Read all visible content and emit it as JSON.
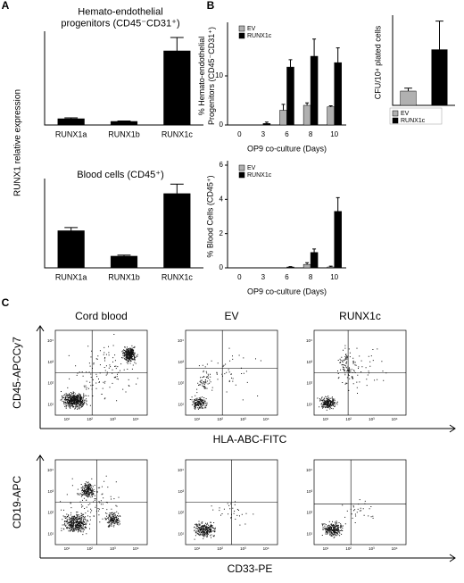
{
  "chart_data": [
    {
      "type": "bar",
      "panel": "A",
      "title": [
        "Hemato-endothelial",
        "progenitors (CD45⁻CD31⁺)"
      ],
      "y_label": "RUNX1 relative expression",
      "categories": [
        "RUNX1a",
        "RUNX1b",
        "RUNX1c"
      ],
      "values": [
        0.7,
        0.4,
        8.3
      ],
      "errors": [
        0.1,
        0.05,
        1.5
      ],
      "color": "#000000",
      "ylim": [
        0,
        10
      ]
    },
    {
      "type": "bar",
      "title": [
        "Blood cells (CD45⁺)"
      ],
      "categories": [
        "RUNX1a",
        "RUNX1b",
        "RUNX1c"
      ],
      "values": [
        17.5,
        5.5,
        35
      ],
      "errors": [
        1.5,
        0.5,
        4.5
      ],
      "color": "#000000",
      "ylim": [
        0,
        40
      ]
    },
    {
      "type": "bar",
      "panel": "B",
      "y_label": [
        "% Hemato-endothelial",
        "Progenitors (CD45⁻CD31⁺)"
      ],
      "x_label": "OP9 co-culture (Days)",
      "categories": [
        "0",
        "3",
        "6",
        "8",
        "10"
      ],
      "ylim": [
        0,
        20
      ],
      "yticks": [
        0,
        10
      ],
      "legend": "upper left",
      "series": [
        {
          "name": "EV",
          "color": "#b0b0b0",
          "values": [
            0,
            0,
            3,
            4,
            3.7
          ],
          "errors": [
            0,
            0,
            1.2,
            0.5,
            0.2
          ]
        },
        {
          "name": "RUNX1c",
          "color": "#000000",
          "values": [
            0,
            0.3,
            11.8,
            14,
            12.7
          ],
          "errors": [
            0,
            0.3,
            1.5,
            3.5,
            3
          ]
        }
      ]
    },
    {
      "type": "bar",
      "y_label": "CFU/10⁴ plated cells",
      "categories": [
        "",
        ""
      ],
      "ylim": [
        0,
        30
      ],
      "legend": "below",
      "single": true,
      "series": [
        {
          "name": "EV",
          "color": "#b0b0b0",
          "values": [
            5,
            null
          ],
          "errors": [
            1,
            null
          ]
        },
        {
          "name": "RUNX1c",
          "color": "#000000",
          "values": [
            null,
            19.5
          ],
          "errors": [
            null,
            10
          ]
        }
      ]
    },
    {
      "type": "bar",
      "y_label": "% Blood Cells (CD45⁺)",
      "x_label": "OP9 co-culture (Days)",
      "categories": [
        "0",
        "3",
        "6",
        "8",
        "10"
      ],
      "ylim": [
        0,
        6
      ],
      "yticks": [
        0,
        2,
        4,
        6
      ],
      "legend": "upper left",
      "series": [
        {
          "name": "EV",
          "color": "#b0b0b0",
          "values": [
            0,
            0,
            0,
            0.2,
            0.05
          ],
          "errors": [
            0,
            0,
            0,
            0.1,
            0.05
          ]
        },
        {
          "name": "RUNX1c",
          "color": "#000000",
          "values": [
            0,
            0,
            0.05,
            0.9,
            3.3
          ],
          "errors": [
            0,
            0,
            0.02,
            0.2,
            0.8
          ]
        }
      ]
    }
  ],
  "flow": {
    "panel": "C",
    "columns": [
      "Cord blood",
      "EV",
      "RUNX1c"
    ],
    "ticks": [
      "10¹",
      "10²",
      "10³",
      "10⁴"
    ],
    "rows": [
      {
        "y_label": "CD45-APCCy7",
        "x_label": "HLA-ABC-FITC"
      },
      {
        "y_label": "CD19-APC",
        "x_label": "CD33-PE"
      }
    ]
  }
}
